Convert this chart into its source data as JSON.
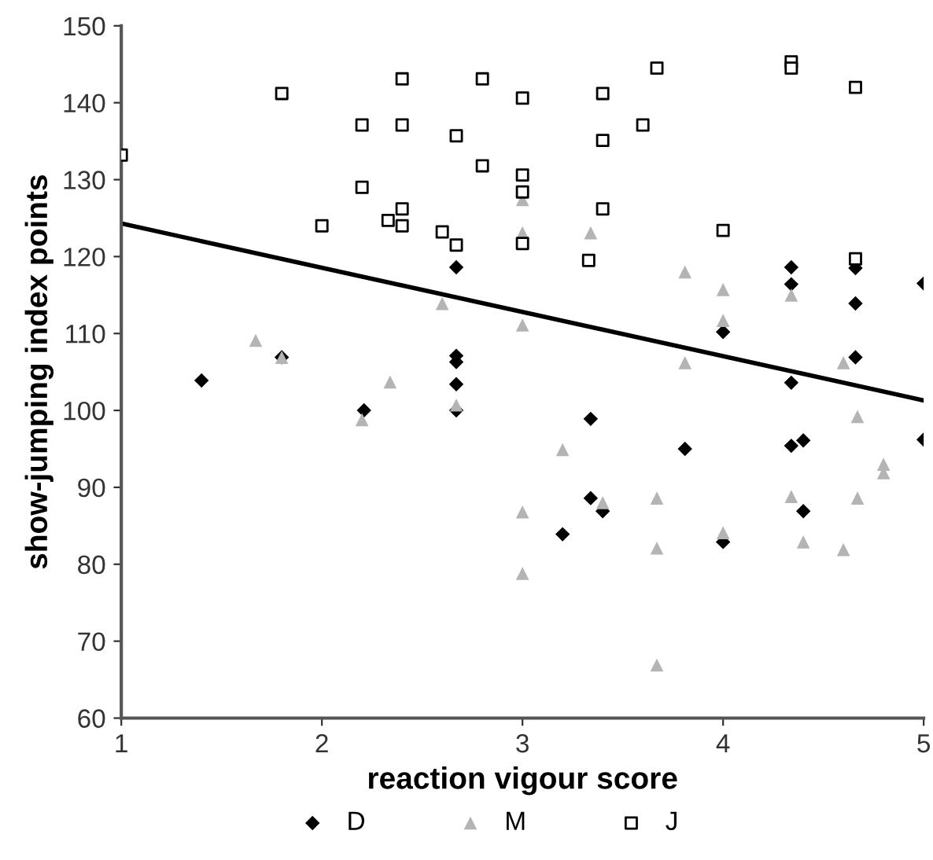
{
  "chart_data": {
    "type": "scatter",
    "xlabel": "reaction vigour score",
    "ylabel": "show-jumping index points",
    "xlim": [
      1,
      5
    ],
    "ylim": [
      60,
      150
    ],
    "xticks": [
      1,
      2,
      3,
      4,
      5
    ],
    "yticks": [
      60,
      70,
      80,
      90,
      100,
      110,
      120,
      130,
      140,
      150
    ],
    "grid": false,
    "legend": "bottom",
    "series": [
      {
        "name": "D",
        "color": "#000000",
        "marker": "diamond",
        "x": [
          1.4,
          1.8,
          2.21,
          2.67,
          2.67,
          2.67,
          2.67,
          2.67,
          3.2,
          3.34,
          3.34,
          3.4,
          3.81,
          4.0,
          4.0,
          4.34,
          4.34,
          4.34,
          4.34,
          4.4,
          4.4,
          4.66,
          4.66,
          4.66,
          5.0,
          5.0
        ],
        "values": [
          103.9,
          106.9,
          100.0,
          118.6,
          107.1,
          106.3,
          103.4,
          100.0,
          83.9,
          98.9,
          88.6,
          86.9,
          95.0,
          110.2,
          82.9,
          118.6,
          116.4,
          103.6,
          95.4,
          96.1,
          86.9,
          118.5,
          113.9,
          106.9,
          116.5,
          96.2
        ]
      },
      {
        "name": "M",
        "color": "#b4b4b4",
        "marker": "triangle",
        "x": [
          1.67,
          1.8,
          2.2,
          2.34,
          2.6,
          2.67,
          3.0,
          3.0,
          3.0,
          3.0,
          3.0,
          3.2,
          3.34,
          3.4,
          3.67,
          3.67,
          3.67,
          3.81,
          3.81,
          4.0,
          4.0,
          4.0,
          4.34,
          4.34,
          4.4,
          4.6,
          4.6,
          4.67,
          4.67,
          4.8,
          4.8
        ],
        "values": [
          109.1,
          106.9,
          98.8,
          103.7,
          113.9,
          100.7,
          127.4,
          123.1,
          111.1,
          86.8,
          78.8,
          94.9,
          123.1,
          88.0,
          88.6,
          82.1,
          66.9,
          118.0,
          106.2,
          115.7,
          111.7,
          84.1,
          115.0,
          88.8,
          82.9,
          106.2,
          81.9,
          99.2,
          88.6,
          93.0,
          91.9
        ]
      },
      {
        "name": "J",
        "color": "#000000",
        "marker": "square",
        "x": [
          1.0,
          1.8,
          2.0,
          2.2,
          2.2,
          2.33,
          2.4,
          2.4,
          2.4,
          2.4,
          2.6,
          2.67,
          2.67,
          2.8,
          2.8,
          3.0,
          3.0,
          3.0,
          3.0,
          3.33,
          3.4,
          3.4,
          3.4,
          3.6,
          3.67,
          4.0,
          4.34,
          4.34,
          4.66,
          4.66
        ],
        "values": [
          133.2,
          141.2,
          124.0,
          137.1,
          129.0,
          124.7,
          143.1,
          137.1,
          126.2,
          124.0,
          123.2,
          135.7,
          121.5,
          143.1,
          131.8,
          140.6,
          130.6,
          128.4,
          121.7,
          119.5,
          141.2,
          135.1,
          126.2,
          137.1,
          144.5,
          123.4,
          145.3,
          144.5,
          142.0,
          119.7
        ]
      },
      {
        "type": "line",
        "color": "#000000",
        "x": [
          1,
          5
        ],
        "values": [
          124.3,
          101.3
        ]
      }
    ]
  }
}
